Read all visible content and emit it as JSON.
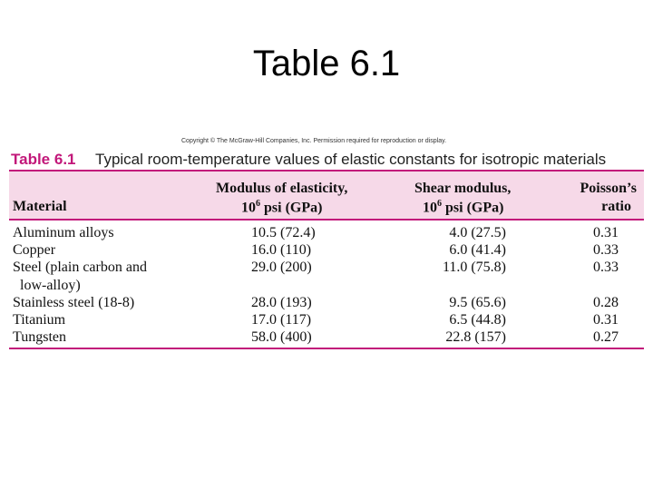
{
  "slide_title": "Table 6.1",
  "copyright": "Copyright © The McGraw-Hill Companies, Inc. Permission required for reproduction or display.",
  "table": {
    "label": "Table 6.1",
    "caption": "Typical room-temperature values of elastic constants for isotropic materials",
    "header": {
      "material": "Material",
      "modulus": {
        "line1": "Modulus of elasticity,",
        "base": "10",
        "exp": "6",
        "unit": "psi (GPa)"
      },
      "shear": {
        "line1": "Shear modulus,",
        "base": "10",
        "exp": "6",
        "unit": "psi (GPa)"
      },
      "poisson": {
        "line1": "Poisson’s",
        "line2": "ratio"
      }
    },
    "rows": [
      {
        "material": [
          "Aluminum alloys"
        ],
        "modulus": "10.5 (72.4)",
        "shear": "4.0 (27.5)",
        "poisson": "0.31"
      },
      {
        "material": [
          "Copper"
        ],
        "modulus": "16.0 (110)",
        "shear": "6.0 (41.4)",
        "poisson": "0.33"
      },
      {
        "material": [
          "Steel (plain carbon and",
          "low-alloy)"
        ],
        "modulus": "29.0 (200)",
        "shear": "11.0 (75.8)",
        "poisson": "0.33"
      },
      {
        "material": [
          "Stainless steel (18-8)"
        ],
        "modulus": "28.0 (193)",
        "shear": "9.5 (65.6)",
        "poisson": "0.28"
      },
      {
        "material": [
          "Titanium"
        ],
        "modulus": "17.0 (117)",
        "shear": "6.5 (44.8)",
        "poisson": "0.31"
      },
      {
        "material": [
          "Tungsten"
        ],
        "modulus": "58.0 (400)",
        "shear": "22.8 (157)",
        "poisson": "0.27"
      }
    ]
  }
}
